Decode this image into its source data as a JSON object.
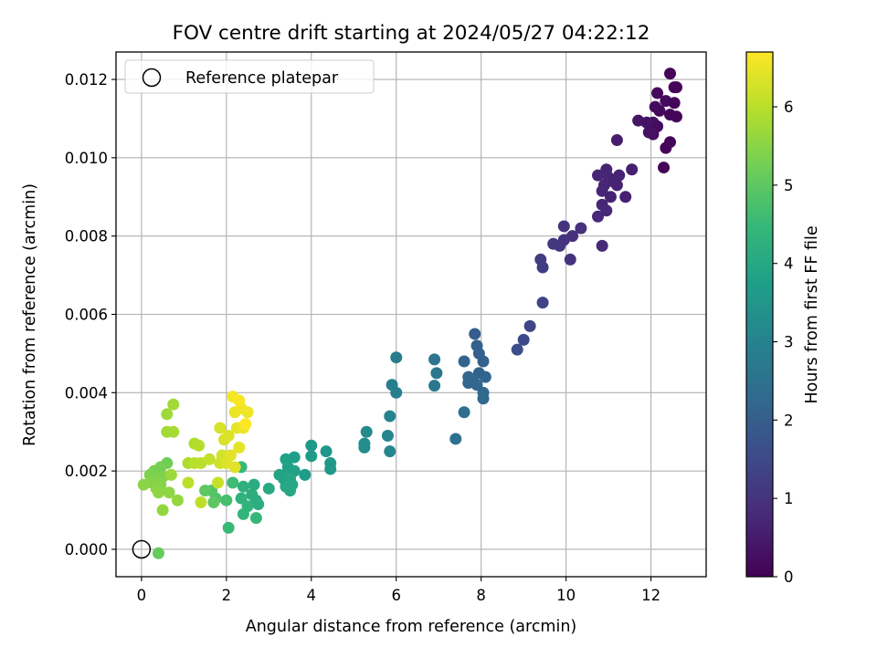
{
  "chart_data": {
    "type": "scatter",
    "title": "FOV centre drift starting at 2024/05/27 04:22:12",
    "xlabel": "Angular distance from reference (arcmin)",
    "ylabel": "Rotation from reference (arcmin)",
    "xlim": [
      -0.6,
      13.3
    ],
    "ylim": [
      -0.0007,
      0.0127
    ],
    "xticks": [
      "0",
      "2",
      "4",
      "6",
      "8",
      "10",
      "12"
    ],
    "xtick_values": [
      0,
      2,
      4,
      6,
      8,
      10,
      12
    ],
    "yticks": [
      "0.000",
      "0.002",
      "0.004",
      "0.006",
      "0.008",
      "0.010",
      "0.012"
    ],
    "ytick_values": [
      0,
      0.002,
      0.004,
      0.006,
      0.008,
      0.01,
      0.012
    ],
    "grid": true,
    "legend": {
      "position": "top-left",
      "entries": [
        {
          "label": "Reference platepar",
          "marker": "open-circle",
          "x": 0,
          "y": 0
        }
      ]
    },
    "colorbar": {
      "label": "Hours from first FF file",
      "colormap": "viridis",
      "min": 0,
      "max": 6.7,
      "ticks": [
        "0",
        "1",
        "2",
        "3",
        "4",
        "5",
        "6"
      ],
      "tick_values": [
        0,
        1,
        2,
        3,
        4,
        5,
        6
      ]
    },
    "colormap_stops": [
      "#440154",
      "#482878",
      "#3e4989",
      "#31688e",
      "#26828e",
      "#1f9e89",
      "#35b779",
      "#6ece58",
      "#b5de2b",
      "#fde725"
    ],
    "points": [
      {
        "x": 12.45,
        "y": 0.01215,
        "h": 0.1
      },
      {
        "x": 12.55,
        "y": 0.0118,
        "h": 0.1
      },
      {
        "x": 12.6,
        "y": 0.0118,
        "h": 0.1
      },
      {
        "x": 12.15,
        "y": 0.01165,
        "h": 0.15
      },
      {
        "x": 12.35,
        "y": 0.01145,
        "h": 0.2
      },
      {
        "x": 12.55,
        "y": 0.0114,
        "h": 0.1
      },
      {
        "x": 12.1,
        "y": 0.0113,
        "h": 0.2
      },
      {
        "x": 12.2,
        "y": 0.0112,
        "h": 0.15
      },
      {
        "x": 12.45,
        "y": 0.0111,
        "h": 0.1
      },
      {
        "x": 12.6,
        "y": 0.01105,
        "h": 0.1
      },
      {
        "x": 12.05,
        "y": 0.0109,
        "h": 0.3
      },
      {
        "x": 11.7,
        "y": 0.01095,
        "h": 0.4
      },
      {
        "x": 11.9,
        "y": 0.0109,
        "h": 0.35
      },
      {
        "x": 12.15,
        "y": 0.0108,
        "h": 0.2
      },
      {
        "x": 11.95,
        "y": 0.01065,
        "h": 0.3
      },
      {
        "x": 12.05,
        "y": 0.0106,
        "h": 0.3
      },
      {
        "x": 12.45,
        "y": 0.0104,
        "h": 0.1
      },
      {
        "x": 12.35,
        "y": 0.01025,
        "h": 0.1
      },
      {
        "x": 12.3,
        "y": 0.00975,
        "h": 0.1
      },
      {
        "x": 11.2,
        "y": 0.01045,
        "h": 0.55
      },
      {
        "x": 11.55,
        "y": 0.0097,
        "h": 0.6
      },
      {
        "x": 11.25,
        "y": 0.00955,
        "h": 0.65
      },
      {
        "x": 10.95,
        "y": 0.0097,
        "h": 0.65
      },
      {
        "x": 10.75,
        "y": 0.00955,
        "h": 0.7
      },
      {
        "x": 11.0,
        "y": 0.0095,
        "h": 0.7
      },
      {
        "x": 11.1,
        "y": 0.0094,
        "h": 0.65
      },
      {
        "x": 10.9,
        "y": 0.0093,
        "h": 0.7
      },
      {
        "x": 11.2,
        "y": 0.0093,
        "h": 0.65
      },
      {
        "x": 10.85,
        "y": 0.00915,
        "h": 0.7
      },
      {
        "x": 11.05,
        "y": 0.009,
        "h": 0.65
      },
      {
        "x": 11.4,
        "y": 0.009,
        "h": 0.6
      },
      {
        "x": 10.85,
        "y": 0.0088,
        "h": 0.7
      },
      {
        "x": 10.95,
        "y": 0.00865,
        "h": 0.75
      },
      {
        "x": 10.75,
        "y": 0.0085,
        "h": 0.75
      },
      {
        "x": 10.85,
        "y": 0.00775,
        "h": 0.75
      },
      {
        "x": 9.95,
        "y": 0.00825,
        "h": 1.0
      },
      {
        "x": 10.35,
        "y": 0.0082,
        "h": 0.95
      },
      {
        "x": 10.15,
        "y": 0.008,
        "h": 0.95
      },
      {
        "x": 9.95,
        "y": 0.0079,
        "h": 1.0
      },
      {
        "x": 9.7,
        "y": 0.0078,
        "h": 1.1
      },
      {
        "x": 9.85,
        "y": 0.00775,
        "h": 1.05
      },
      {
        "x": 10.1,
        "y": 0.0074,
        "h": 1.0
      },
      {
        "x": 9.4,
        "y": 0.0074,
        "h": 1.2
      },
      {
        "x": 9.45,
        "y": 0.0072,
        "h": 1.2
      },
      {
        "x": 9.45,
        "y": 0.0063,
        "h": 1.35
      },
      {
        "x": 9.15,
        "y": 0.0057,
        "h": 1.45
      },
      {
        "x": 9.0,
        "y": 0.00535,
        "h": 1.5
      },
      {
        "x": 8.85,
        "y": 0.0051,
        "h": 1.6
      },
      {
        "x": 7.85,
        "y": 0.0055,
        "h": 2.0
      },
      {
        "x": 7.9,
        "y": 0.0052,
        "h": 2.05
      },
      {
        "x": 7.95,
        "y": 0.005,
        "h": 2.05
      },
      {
        "x": 8.05,
        "y": 0.0048,
        "h": 2.1
      },
      {
        "x": 7.6,
        "y": 0.0048,
        "h": 2.15
      },
      {
        "x": 7.95,
        "y": 0.0045,
        "h": 2.1
      },
      {
        "x": 8.1,
        "y": 0.0044,
        "h": 2.15
      },
      {
        "x": 7.7,
        "y": 0.0044,
        "h": 2.2
      },
      {
        "x": 7.8,
        "y": 0.0043,
        "h": 2.25
      },
      {
        "x": 7.7,
        "y": 0.00425,
        "h": 2.2
      },
      {
        "x": 7.9,
        "y": 0.0042,
        "h": 2.2
      },
      {
        "x": 8.05,
        "y": 0.004,
        "h": 2.25
      },
      {
        "x": 8.05,
        "y": 0.00385,
        "h": 2.3
      },
      {
        "x": 7.6,
        "y": 0.0035,
        "h": 2.4
      },
      {
        "x": 7.4,
        "y": 0.00282,
        "h": 2.5
      },
      {
        "x": 6.9,
        "y": 0.00485,
        "h": 2.6
      },
      {
        "x": 6.95,
        "y": 0.0045,
        "h": 2.65
      },
      {
        "x": 6.9,
        "y": 0.00418,
        "h": 2.7
      },
      {
        "x": 6.0,
        "y": 0.0049,
        "h": 2.8
      },
      {
        "x": 5.9,
        "y": 0.0042,
        "h": 2.85
      },
      {
        "x": 6.0,
        "y": 0.004,
        "h": 2.9
      },
      {
        "x": 5.85,
        "y": 0.0034,
        "h": 3.0
      },
      {
        "x": 5.8,
        "y": 0.0029,
        "h": 3.05
      },
      {
        "x": 5.85,
        "y": 0.0025,
        "h": 3.1
      },
      {
        "x": 5.3,
        "y": 0.003,
        "h": 3.2
      },
      {
        "x": 5.25,
        "y": 0.0027,
        "h": 3.25
      },
      {
        "x": 5.25,
        "y": 0.0026,
        "h": 3.3
      },
      {
        "x": 4.35,
        "y": 0.0025,
        "h": 3.5
      },
      {
        "x": 4.45,
        "y": 0.0022,
        "h": 3.55
      },
      {
        "x": 4.45,
        "y": 0.00205,
        "h": 3.6
      },
      {
        "x": 4.0,
        "y": 0.00265,
        "h": 3.6
      },
      {
        "x": 4.0,
        "y": 0.00238,
        "h": 3.65
      },
      {
        "x": 3.85,
        "y": 0.0019,
        "h": 3.7
      },
      {
        "x": 3.6,
        "y": 0.00235,
        "h": 3.75
      },
      {
        "x": 3.4,
        "y": 0.0023,
        "h": 3.8
      },
      {
        "x": 3.45,
        "y": 0.0021,
        "h": 3.8
      },
      {
        "x": 3.5,
        "y": 0.00195,
        "h": 3.85
      },
      {
        "x": 3.6,
        "y": 0.002,
        "h": 3.85
      },
      {
        "x": 3.25,
        "y": 0.0019,
        "h": 3.9
      },
      {
        "x": 3.35,
        "y": 0.0018,
        "h": 3.9
      },
      {
        "x": 3.5,
        "y": 0.0018,
        "h": 3.95
      },
      {
        "x": 3.55,
        "y": 0.00165,
        "h": 3.95
      },
      {
        "x": 3.4,
        "y": 0.0016,
        "h": 4.0
      },
      {
        "x": 3.5,
        "y": 0.0015,
        "h": 4.0
      },
      {
        "x": 3.0,
        "y": 0.00155,
        "h": 4.05
      },
      {
        "x": 2.65,
        "y": 0.00165,
        "h": 4.1
      },
      {
        "x": 2.7,
        "y": 0.00125,
        "h": 4.15
      },
      {
        "x": 2.75,
        "y": 0.00115,
        "h": 4.2
      },
      {
        "x": 2.6,
        "y": 0.0014,
        "h": 4.2
      },
      {
        "x": 2.4,
        "y": 0.0016,
        "h": 4.25
      },
      {
        "x": 2.35,
        "y": 0.0013,
        "h": 4.3
      },
      {
        "x": 2.5,
        "y": 0.0011,
        "h": 4.35
      },
      {
        "x": 2.4,
        "y": 0.0009,
        "h": 4.4
      },
      {
        "x": 2.7,
        "y": 0.0008,
        "h": 4.45
      },
      {
        "x": 2.05,
        "y": 0.00055,
        "h": 4.5
      },
      {
        "x": 2.35,
        "y": 0.0021,
        "h": 4.5
      },
      {
        "x": 2.15,
        "y": 0.0017,
        "h": 4.6
      },
      {
        "x": 2.0,
        "y": 0.00125,
        "h": 4.7
      },
      {
        "x": 1.75,
        "y": 0.0013,
        "h": 4.8
      },
      {
        "x": 1.65,
        "y": 0.0015,
        "h": 4.9
      },
      {
        "x": 1.5,
        "y": 0.0015,
        "h": 5.0
      },
      {
        "x": 1.7,
        "y": 0.0012,
        "h": 5.0
      },
      {
        "x": 0.4,
        "y": -0.0001,
        "h": 5.1
      },
      {
        "x": 0.6,
        "y": 0.0022,
        "h": 5.2
      },
      {
        "x": 0.45,
        "y": 0.0021,
        "h": 5.3
      },
      {
        "x": 0.3,
        "y": 0.002,
        "h": 5.3
      },
      {
        "x": 0.2,
        "y": 0.0019,
        "h": 5.35
      },
      {
        "x": 0.35,
        "y": 0.0018,
        "h": 5.4
      },
      {
        "x": 0.5,
        "y": 0.00185,
        "h": 5.4
      },
      {
        "x": 0.25,
        "y": 0.0017,
        "h": 5.45
      },
      {
        "x": 0.45,
        "y": 0.00165,
        "h": 5.45
      },
      {
        "x": 0.05,
        "y": 0.00165,
        "h": 5.5
      },
      {
        "x": 0.35,
        "y": 0.00155,
        "h": 5.5
      },
      {
        "x": 0.4,
        "y": 0.00145,
        "h": 5.55
      },
      {
        "x": 0.65,
        "y": 0.00145,
        "h": 5.55
      },
      {
        "x": 0.85,
        "y": 0.00125,
        "h": 5.6
      },
      {
        "x": 0.5,
        "y": 0.001,
        "h": 5.6
      },
      {
        "x": 0.7,
        "y": 0.0019,
        "h": 5.7
      },
      {
        "x": 0.6,
        "y": 0.00345,
        "h": 5.7
      },
      {
        "x": 0.75,
        "y": 0.0037,
        "h": 5.75
      },
      {
        "x": 0.6,
        "y": 0.003,
        "h": 5.75
      },
      {
        "x": 0.75,
        "y": 0.003,
        "h": 5.8
      },
      {
        "x": 1.1,
        "y": 0.0022,
        "h": 5.85
      },
      {
        "x": 1.25,
        "y": 0.0027,
        "h": 5.9
      },
      {
        "x": 1.35,
        "y": 0.00265,
        "h": 5.95
      },
      {
        "x": 1.25,
        "y": 0.0022,
        "h": 6.0
      },
      {
        "x": 1.4,
        "y": 0.0022,
        "h": 6.0
      },
      {
        "x": 1.1,
        "y": 0.0017,
        "h": 6.05
      },
      {
        "x": 1.4,
        "y": 0.0012,
        "h": 6.05
      },
      {
        "x": 1.6,
        "y": 0.0023,
        "h": 6.1
      },
      {
        "x": 1.8,
        "y": 0.0017,
        "h": 6.15
      },
      {
        "x": 1.85,
        "y": 0.0022,
        "h": 6.2
      },
      {
        "x": 1.9,
        "y": 0.0024,
        "h": 6.25
      },
      {
        "x": 1.95,
        "y": 0.0028,
        "h": 6.3
      },
      {
        "x": 1.85,
        "y": 0.0031,
        "h": 6.3
      },
      {
        "x": 2.05,
        "y": 0.0029,
        "h": 6.35
      },
      {
        "x": 2.0,
        "y": 0.0022,
        "h": 6.35
      },
      {
        "x": 2.1,
        "y": 0.0024,
        "h": 6.4
      },
      {
        "x": 2.2,
        "y": 0.0021,
        "h": 6.4
      },
      {
        "x": 2.3,
        "y": 0.0026,
        "h": 6.45
      },
      {
        "x": 2.25,
        "y": 0.0031,
        "h": 6.45
      },
      {
        "x": 2.4,
        "y": 0.0031,
        "h": 6.5
      },
      {
        "x": 2.2,
        "y": 0.0035,
        "h": 6.5
      },
      {
        "x": 2.35,
        "y": 0.0036,
        "h": 6.55
      },
      {
        "x": 2.5,
        "y": 0.0035,
        "h": 6.55
      },
      {
        "x": 2.15,
        "y": 0.0039,
        "h": 6.6
      },
      {
        "x": 2.3,
        "y": 0.0038,
        "h": 6.65
      },
      {
        "x": 2.45,
        "y": 0.0032,
        "h": 6.7
      }
    ]
  }
}
